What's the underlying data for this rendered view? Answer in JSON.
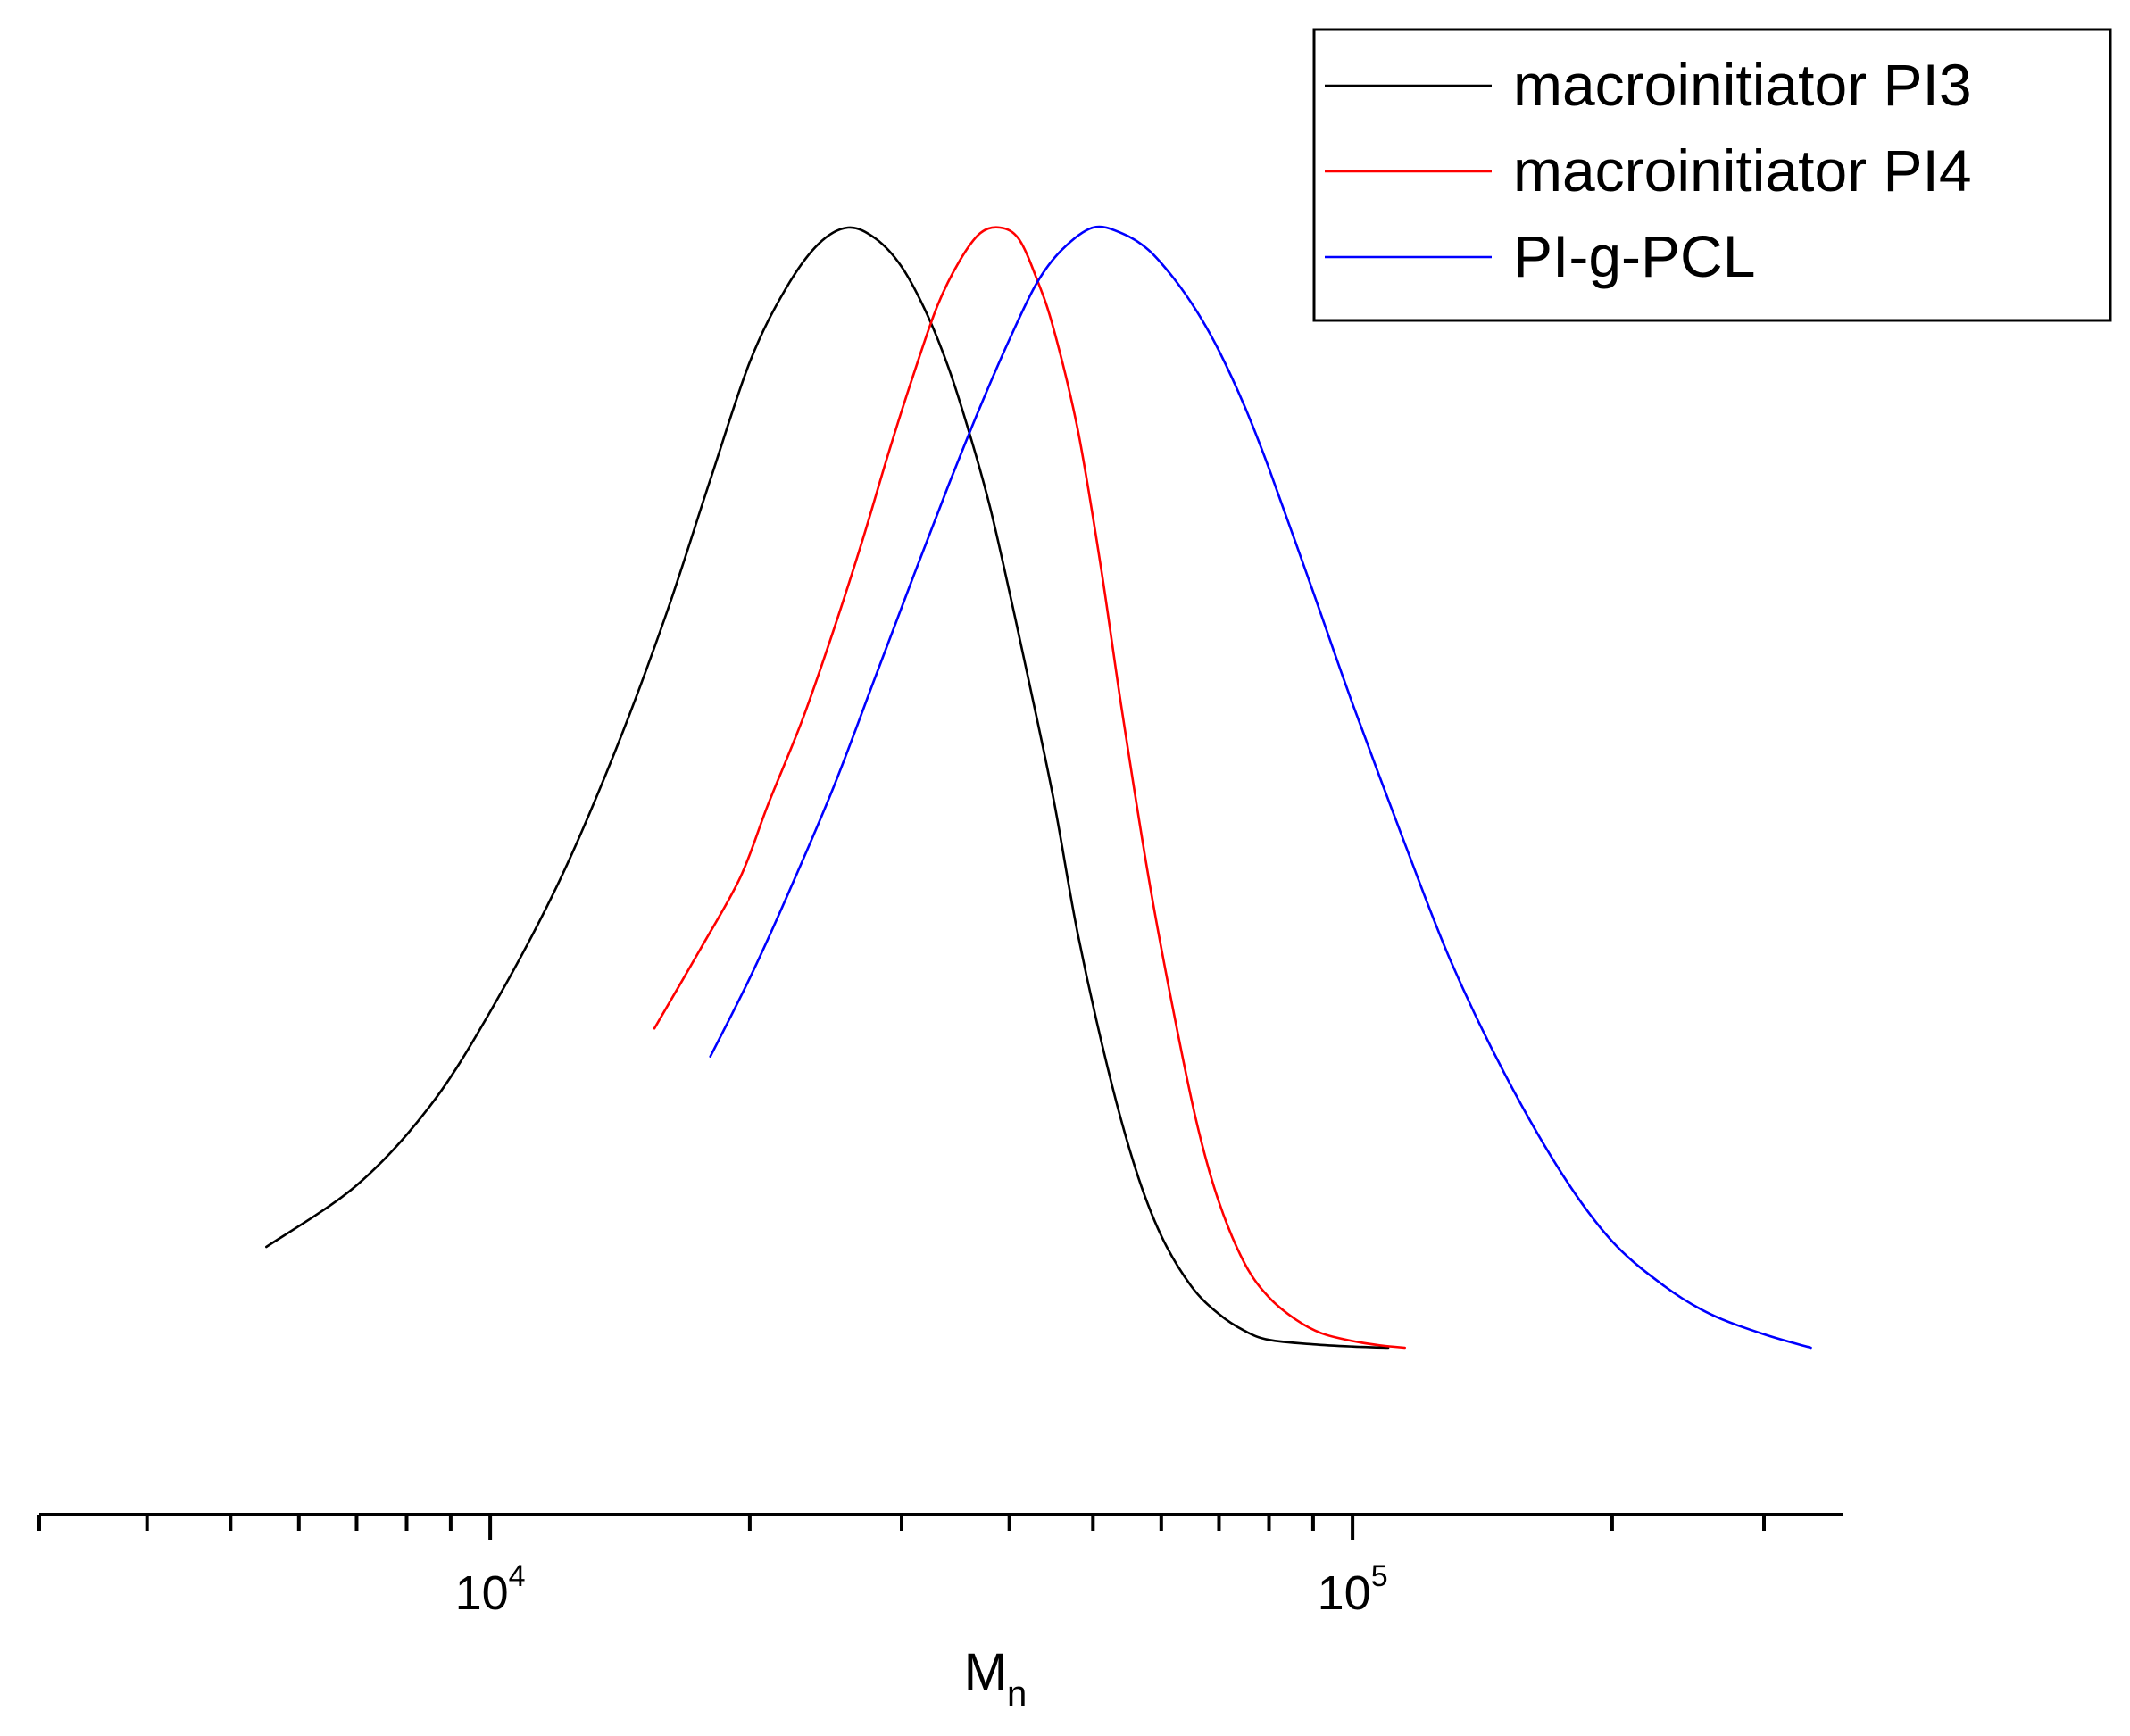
{
  "chart_data": {
    "type": "line",
    "title": "",
    "xlabel": {
      "main": "M",
      "sub": "n"
    },
    "ylabel": "",
    "x_scale": "log",
    "xlim": [
      3000,
      370000
    ],
    "ylim": [
      -0.15,
      1.0
    ],
    "x_ticks": [
      {
        "value": 10000,
        "base": "10",
        "exp": "4"
      },
      {
        "value": 100000,
        "base": "10",
        "exp": "5"
      }
    ],
    "legend": {
      "position": "top-right"
    },
    "series": [
      {
        "name": "macroinitiator PI3",
        "color": "#000000",
        "x": [
          5500,
          7000,
          8500,
          10000,
          12000,
          14000,
          16000,
          18000,
          20000,
          22000,
          24000,
          26000,
          28000,
          30000,
          32000,
          34000,
          36000,
          38000,
          40000,
          42000,
          45000,
          48000,
          52000,
          56000,
          60000,
          65000,
          70000,
          75000,
          80000,
          90000,
          100000,
          110000
        ],
        "y": [
          0.09,
          0.145,
          0.215,
          0.3,
          0.415,
          0.535,
          0.655,
          0.775,
          0.88,
          0.945,
          0.985,
          1.0,
          0.99,
          0.965,
          0.925,
          0.875,
          0.815,
          0.75,
          0.675,
          0.6,
          0.49,
          0.37,
          0.25,
          0.16,
          0.1,
          0.055,
          0.03,
          0.015,
          0.007,
          0.003,
          0.001,
          0.0
        ]
      },
      {
        "name": "macroinitiator PI4",
        "color": "#ff0000",
        "x": [
          15500,
          17500,
          19500,
          21000,
          23000,
          25000,
          27000,
          29000,
          31000,
          33000,
          35000,
          37000,
          39000,
          41000,
          43000,
          45000,
          48000,
          51000,
          54000,
          58000,
          62000,
          66000,
          70000,
          75000,
          80000,
          86000,
          92000,
          100000,
          108000,
          115000
        ],
        "y": [
          0.285,
          0.355,
          0.42,
          0.485,
          0.56,
          0.64,
          0.72,
          0.8,
          0.87,
          0.93,
          0.97,
          0.995,
          1.0,
          0.99,
          0.955,
          0.91,
          0.82,
          0.7,
          0.57,
          0.42,
          0.3,
          0.2,
          0.13,
          0.075,
          0.045,
          0.025,
          0.013,
          0.006,
          0.002,
          0.0
        ]
      },
      {
        "name": "PI-g-PCL",
        "color": "#0000ff",
        "x": [
          18000,
          20000,
          22000,
          25000,
          28000,
          31000,
          34000,
          37000,
          40000,
          43000,
          46000,
          50000,
          54000,
          58000,
          62000,
          66000,
          70000,
          75000,
          80000,
          90000,
          100000,
          115000,
          130000,
          150000,
          175000,
          200000,
          230000,
          260000,
          300000,
          340000
        ],
        "y": [
          0.26,
          0.33,
          0.4,
          0.5,
          0.6,
          0.69,
          0.77,
          0.84,
          0.9,
          0.95,
          0.98,
          1.0,
          0.995,
          0.98,
          0.955,
          0.925,
          0.89,
          0.84,
          0.785,
          0.675,
          0.575,
          0.45,
          0.345,
          0.245,
          0.155,
          0.095,
          0.055,
          0.03,
          0.012,
          0.0
        ]
      }
    ]
  }
}
